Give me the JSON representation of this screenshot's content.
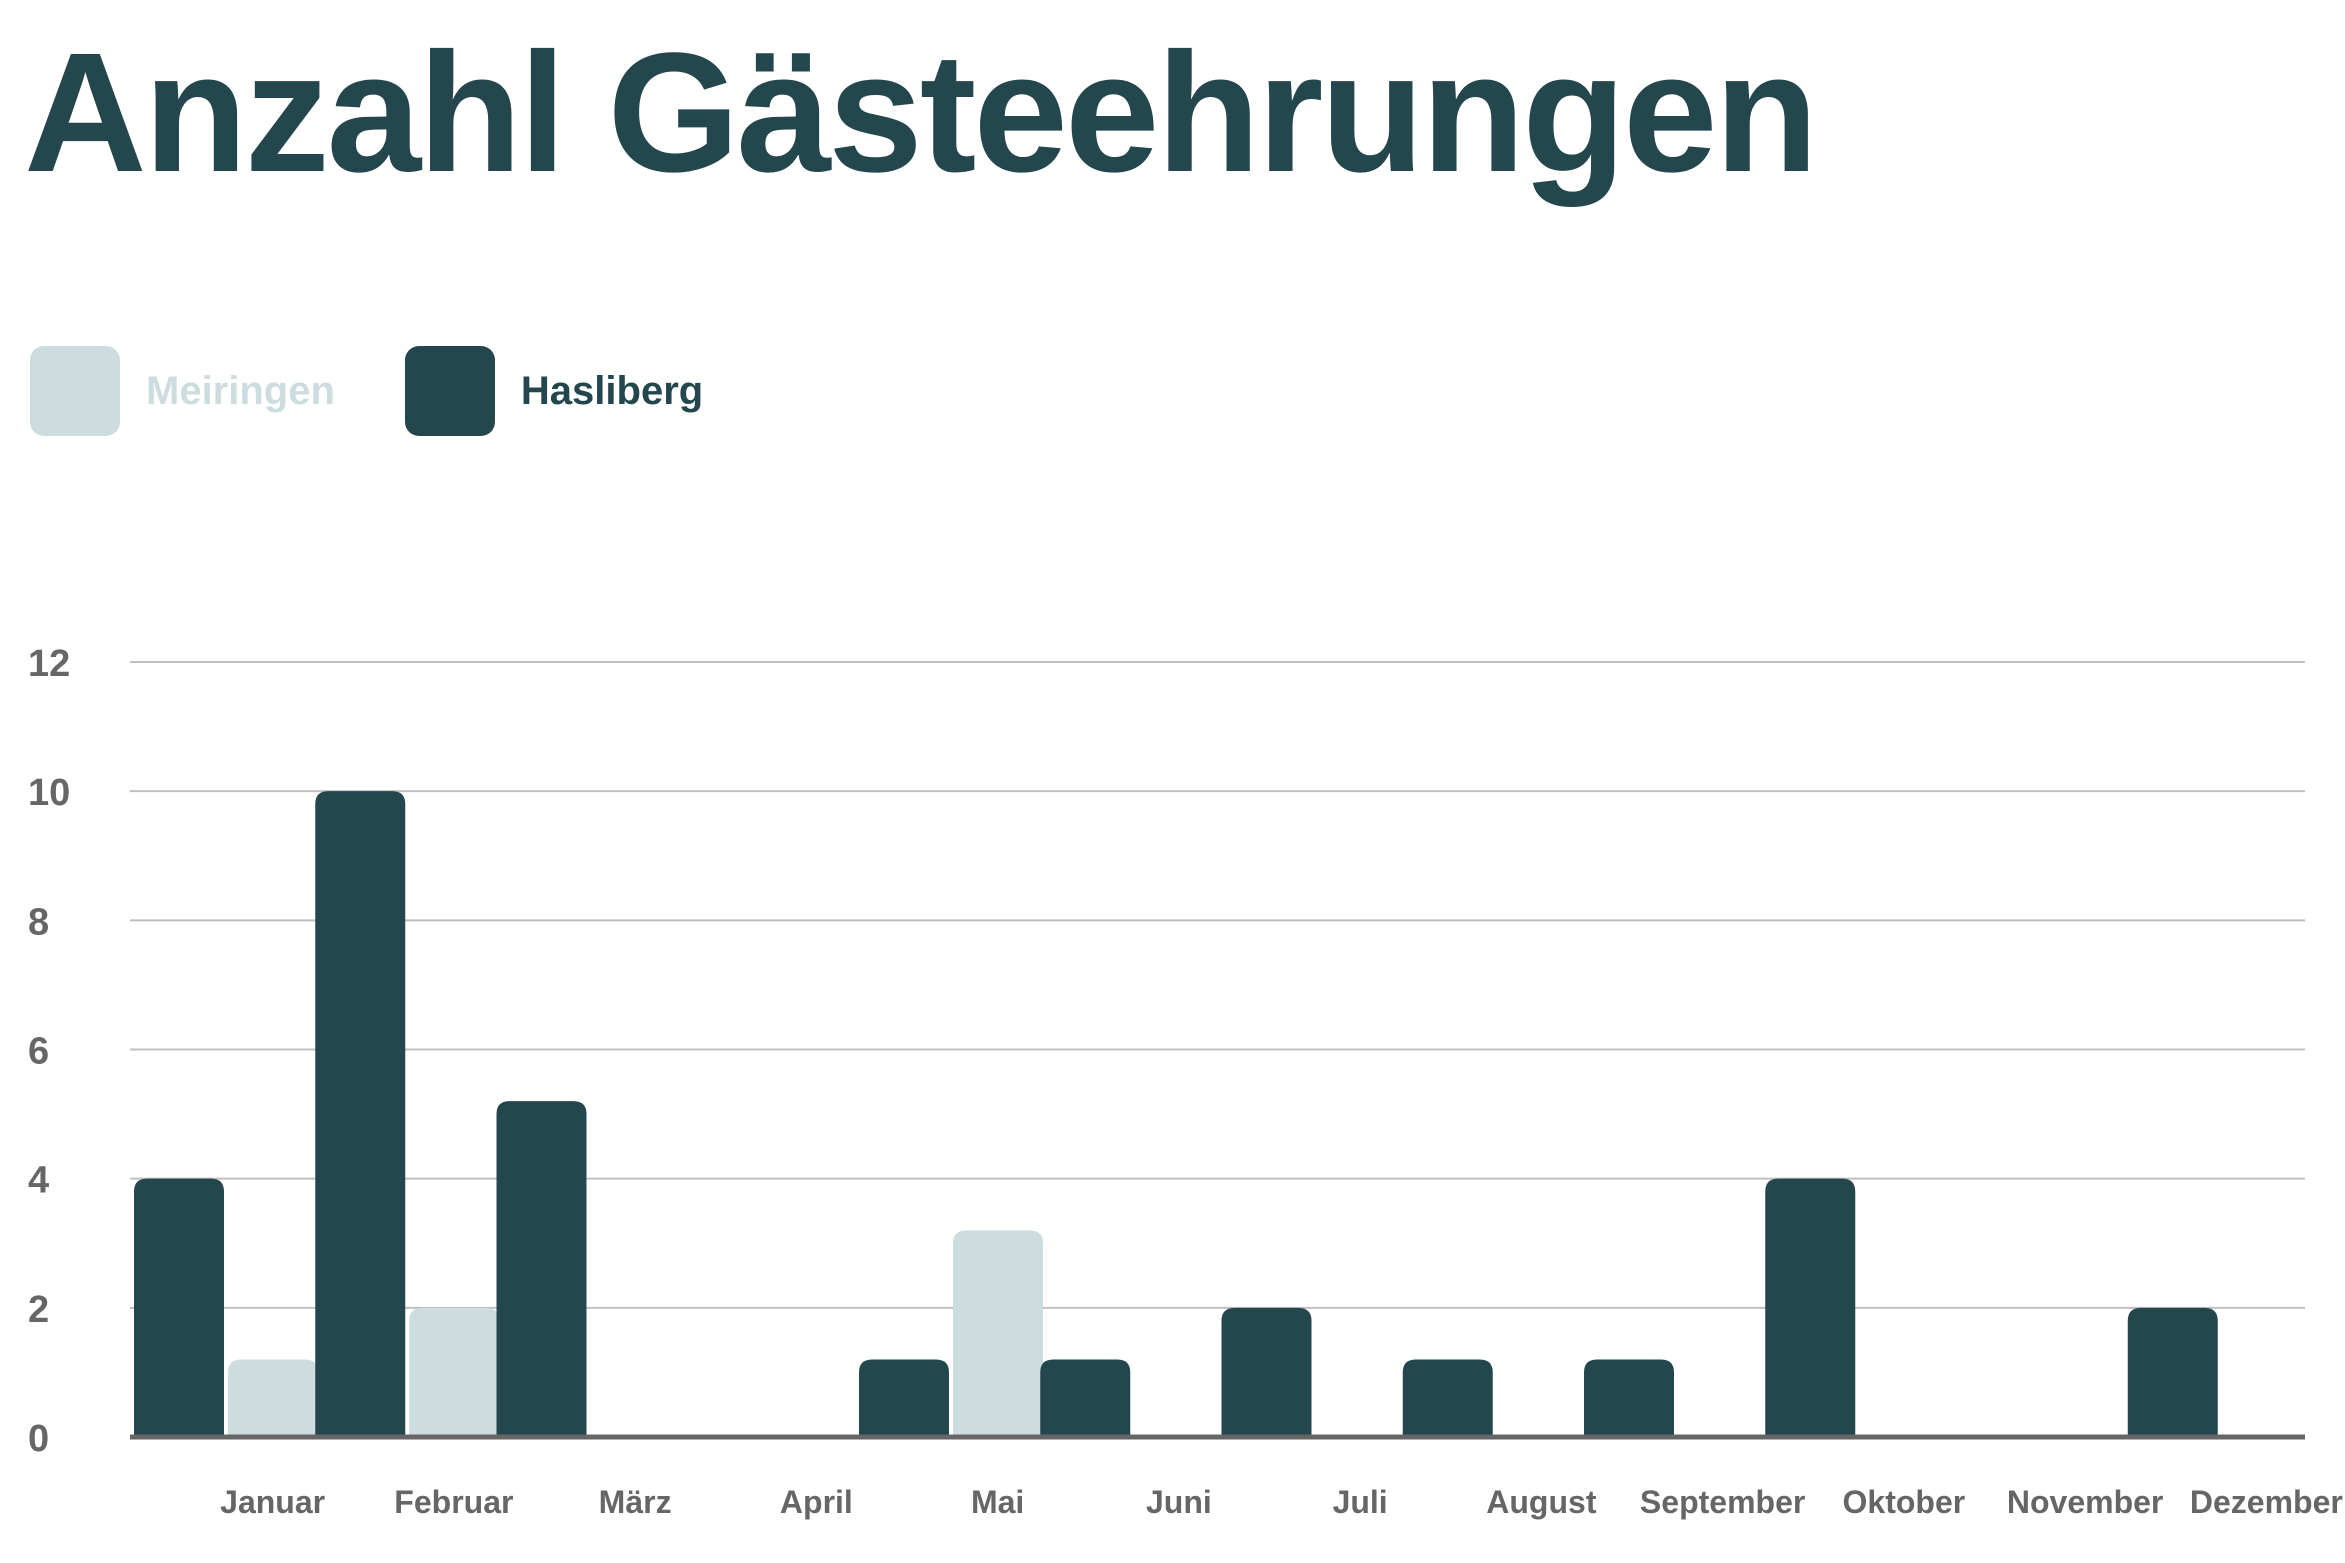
{
  "chart_data": {
    "type": "bar",
    "title": "Anzahl Gästeehrungen",
    "categories": [
      "Januar",
      "Februar",
      "März",
      "April",
      "Mai",
      "Juni",
      "Juli",
      "August",
      "September",
      "Oktober",
      "November",
      "Dezember"
    ],
    "series": [
      {
        "name": "Hasliberg",
        "color": "#24464d",
        "values": [
          4,
          10,
          5.2,
          0,
          1.2,
          1.2,
          2,
          1.2,
          1.2,
          4,
          0,
          2
        ]
      },
      {
        "name": "Meiringen",
        "color": "#ccdcdf",
        "values": [
          1.2,
          2,
          0,
          0,
          3.2,
          0,
          0,
          0,
          0,
          0,
          0,
          0
        ]
      }
    ],
    "legend_order": [
      "Meiringen",
      "Hasliberg"
    ],
    "ylim": [
      0,
      12
    ],
    "yticks": [
      0,
      2,
      4,
      6,
      8,
      10,
      12
    ],
    "xlabel": "",
    "ylabel": "",
    "grid": true,
    "legend_position": "top-left"
  },
  "colors": {
    "title": "#24464d",
    "tick_label": "#666666",
    "gridline": "#bfbfbf",
    "baseline": "#666666",
    "meiringen_legend_text": "#ccdcdf",
    "hasliberg_legend_text": "#24464d"
  }
}
